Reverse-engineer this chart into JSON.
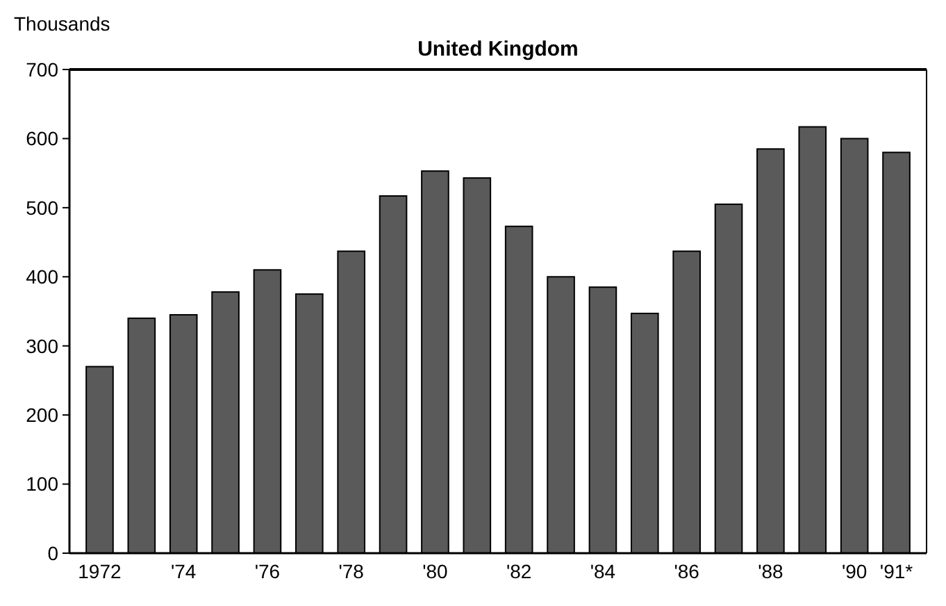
{
  "chart_data": {
    "type": "bar",
    "title": "United Kingdom",
    "ylabel": "Thousands",
    "categories": [
      "1972",
      null,
      "'74",
      null,
      "'76",
      null,
      "'78",
      null,
      "'80",
      null,
      "'82",
      null,
      "'84",
      null,
      "'86",
      null,
      "'88",
      null,
      "'90",
      "'91*"
    ],
    "values": [
      270,
      340,
      345,
      378,
      410,
      375,
      437,
      517,
      553,
      543,
      473,
      400,
      385,
      347,
      437,
      505,
      585,
      617,
      600,
      580
    ],
    "color": "#5a5a5a",
    "ylim": [
      0,
      700
    ],
    "yticks": [
      0,
      100,
      200,
      300,
      400,
      500,
      600,
      700
    ],
    "grid": false
  }
}
